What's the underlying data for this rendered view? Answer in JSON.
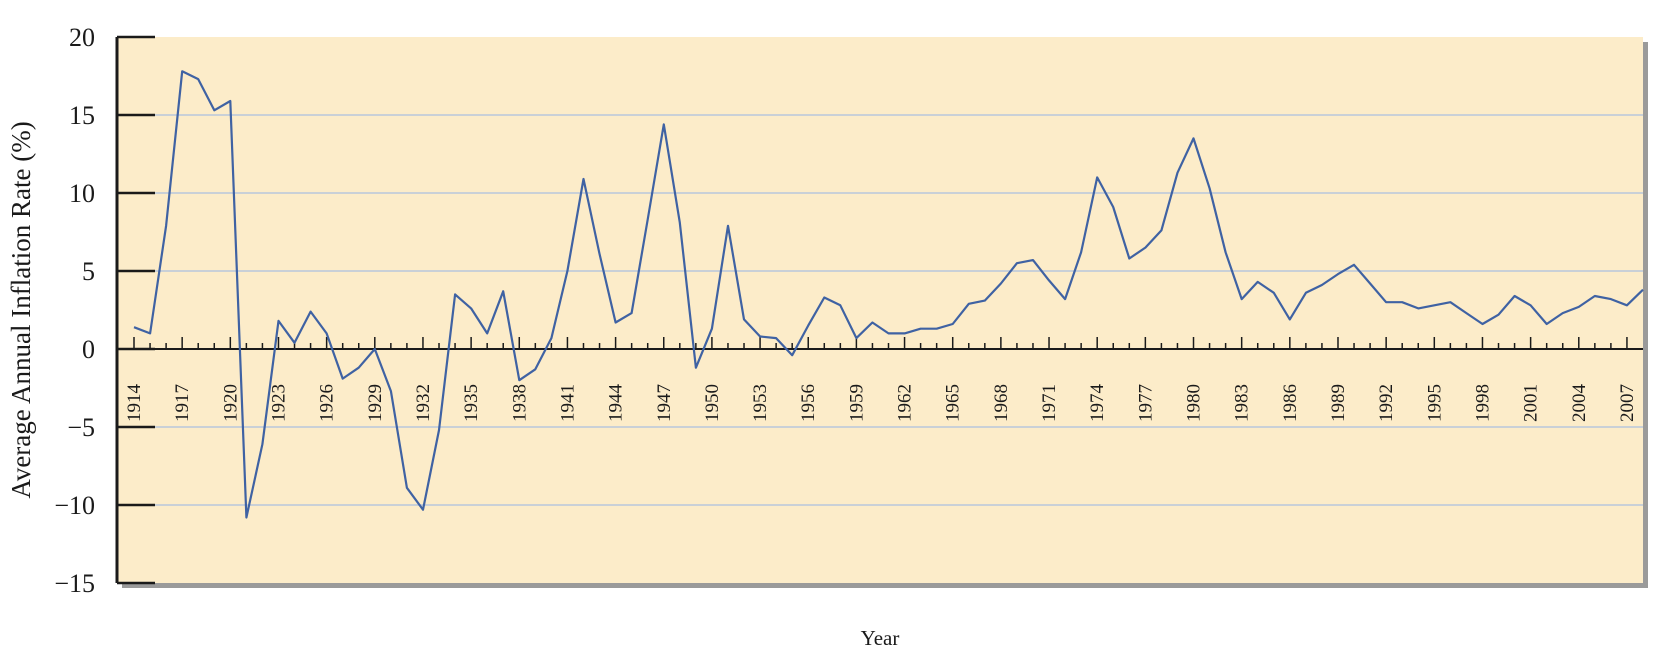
{
  "chart_data": {
    "type": "line",
    "title": "",
    "xlabel": "Year",
    "ylabel": "Average Annual Inflation Rate (%)",
    "ylim": [
      -15,
      20
    ],
    "xlim": [
      1914,
      2008
    ],
    "yticks": [
      20,
      15,
      10,
      5,
      0,
      -5,
      -10,
      -15
    ],
    "yticklabels": [
      "20",
      "15",
      "10",
      "5",
      "0",
      "−5",
      "−10",
      "−15"
    ],
    "xticks": [
      "1914",
      "1917",
      "1920",
      "1923",
      "1926",
      "1929",
      "1932",
      "1935",
      "1938",
      "1941",
      "1944",
      "1947",
      "1950",
      "1953",
      "1956",
      "1959",
      "1962",
      "1965",
      "1968",
      "1971",
      "1974",
      "1977",
      "1980",
      "1983",
      "1986",
      "1989",
      "1992",
      "1995",
      "1998",
      "2001",
      "2004",
      "2007"
    ],
    "grid": true,
    "colors": {
      "background": "#fcecc9",
      "line": "#3f62a3",
      "grid": "#b8c6dc",
      "axis": "#1a1a1a"
    },
    "series": [
      {
        "x": [
          1914,
          1915,
          1916,
          1917,
          1918,
          1919,
          1920,
          1921,
          1922,
          1923,
          1924,
          1925,
          1926,
          1927,
          1928,
          1929,
          1930,
          1931,
          1932,
          1933,
          1934,
          1935,
          1936,
          1937,
          1938,
          1939,
          1940,
          1941,
          1942,
          1943,
          1944,
          1945,
          1946,
          1947,
          1948,
          1949,
          1950,
          1951,
          1952,
          1953,
          1954,
          1955,
          1956,
          1957,
          1958,
          1959,
          1960,
          1961,
          1962,
          1963,
          1964,
          1965,
          1966,
          1967,
          1968,
          1969,
          1970,
          1971,
          1972,
          1973,
          1974,
          1975,
          1976,
          1977,
          1978,
          1979,
          1980,
          1981,
          1982,
          1983,
          1984,
          1985,
          1986,
          1987,
          1988,
          1989,
          1990,
          1991,
          1992,
          1993,
          1994,
          1995,
          1996,
          1997,
          1998,
          1999,
          2000,
          2001,
          2002,
          2003,
          2004,
          2005,
          2006,
          2007,
          2008
        ],
        "values": [
          1.4,
          1.0,
          7.9,
          17.8,
          17.3,
          15.3,
          15.9,
          -10.8,
          -6.1,
          1.8,
          0.4,
          2.4,
          1.0,
          -1.9,
          -1.2,
          0.0,
          -2.7,
          -8.9,
          -10.3,
          -5.2,
          3.5,
          2.6,
          1.0,
          3.7,
          -2.0,
          -1.3,
          0.7,
          5.0,
          10.9,
          6.1,
          1.7,
          2.3,
          8.3,
          14.4,
          8.1,
          -1.2,
          1.3,
          7.9,
          1.9,
          0.8,
          0.7,
          -0.4,
          1.5,
          3.3,
          2.8,
          0.7,
          1.7,
          1.0,
          1.0,
          1.3,
          1.3,
          1.6,
          2.9,
          3.1,
          4.2,
          5.5,
          5.7,
          4.4,
          3.2,
          6.2,
          11.0,
          9.1,
          5.8,
          6.5,
          7.6,
          11.3,
          13.5,
          10.3,
          6.2,
          3.2,
          4.3,
          3.6,
          1.9,
          3.6,
          4.1,
          4.8,
          5.4,
          4.2,
          3.0,
          3.0,
          2.6,
          2.8,
          3.0,
          2.3,
          1.6,
          2.2,
          3.4,
          2.8,
          1.6,
          2.3,
          2.7,
          3.4,
          3.2,
          2.8,
          3.8
        ]
      }
    ]
  }
}
